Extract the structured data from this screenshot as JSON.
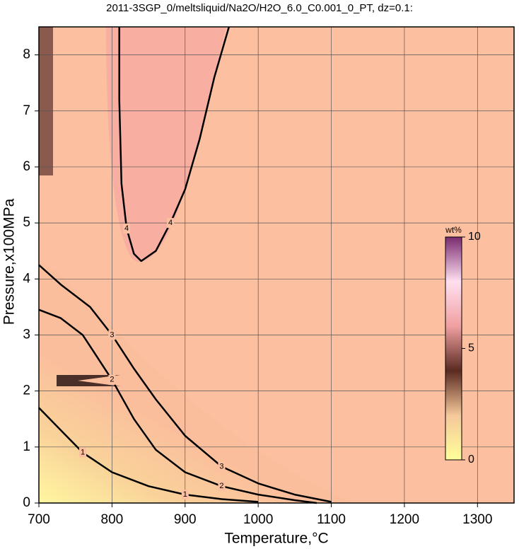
{
  "chart_data": {
    "type": "contour",
    "title": "2011-3SGP_0/meltsliquid/Na2O/H2O_6.0_C0.001_0_PT, dz=0.1:",
    "xlabel": "Temperature,°C",
    "ylabel": "Pressure,x100MPa",
    "xlim": [
      700,
      1350
    ],
    "ylim": [
      0,
      8.5
    ],
    "xticks": [
      700,
      800,
      900,
      1000,
      1100,
      1200,
      1300
    ],
    "yticks": [
      0,
      1,
      2,
      3,
      4,
      5,
      6,
      7,
      8
    ],
    "grid": true,
    "contours": [
      {
        "level": 1,
        "x": [
          700,
          730,
          760,
          800,
          850,
          900,
          950,
          1000
        ],
        "y": [
          1.7,
          1.3,
          0.9,
          0.55,
          0.3,
          0.15,
          0.07,
          0.02
        ]
      },
      {
        "level": 2,
        "x": [
          700,
          730,
          760,
          780,
          800,
          830,
          860,
          900,
          950,
          1000,
          1050,
          1080
        ],
        "y": [
          3.45,
          3.3,
          3.0,
          2.6,
          2.2,
          1.5,
          0.95,
          0.55,
          0.3,
          0.15,
          0.05,
          0
        ]
      },
      {
        "level": 3,
        "x": [
          700,
          730,
          770,
          800,
          830,
          860,
          900,
          950,
          1000,
          1050,
          1100
        ],
        "y": [
          4.25,
          3.9,
          3.5,
          3.0,
          2.4,
          1.85,
          1.2,
          0.65,
          0.35,
          0.15,
          0.02
        ]
      },
      {
        "level": 4,
        "x": [
          810,
          810,
          812,
          813,
          820,
          830,
          840,
          860,
          880,
          900,
          920,
          940,
          960
        ],
        "y": [
          8.5,
          7.2,
          6.2,
          5.7,
          4.9,
          4.45,
          4.32,
          4.5,
          5.0,
          5.6,
          6.5,
          7.6,
          8.5
        ]
      }
    ],
    "colorbar": {
      "label": "wt%",
      "lim": [
        0,
        10
      ],
      "ticks": [
        0,
        5,
        10
      ],
      "colors": [
        "#ffff99",
        "#f5c89a",
        "#5a2a20",
        "#f0a0a0",
        "#ffe0f0",
        "#7a2a70"
      ]
    }
  }
}
